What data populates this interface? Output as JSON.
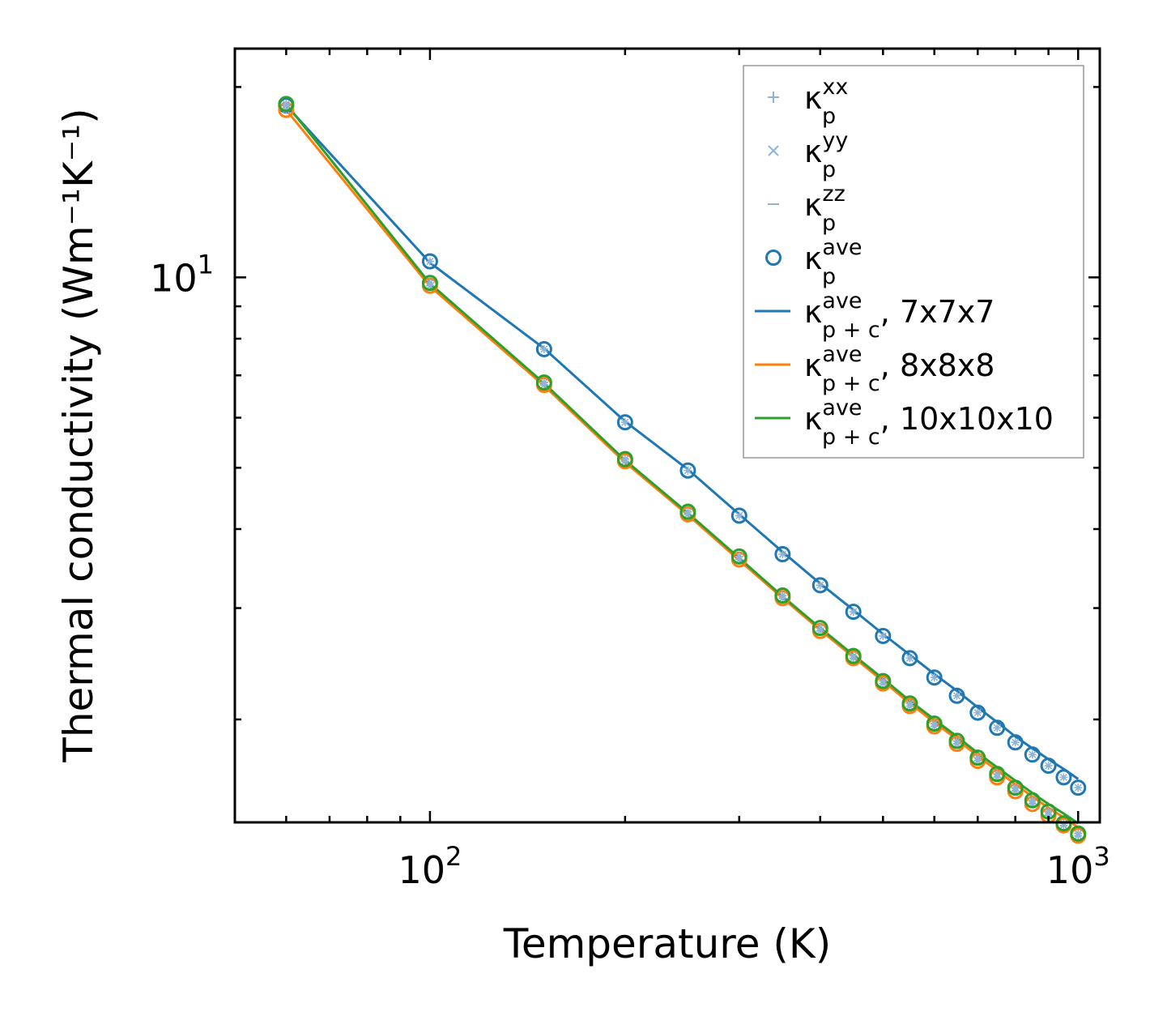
{
  "chart_data": {
    "type": "scatter",
    "xlabel": "Temperature (K)",
    "ylabel": "Thermal conductivity (Wm⁻¹K⁻¹)",
    "xscale": "log",
    "yscale": "log",
    "xlim": [
      50,
      1080
    ],
    "ylim": [
      1.375,
      23.0
    ],
    "x_ticks": [
      {
        "base": "10",
        "exp": "2",
        "value": 100
      },
      {
        "base": "10",
        "exp": "3",
        "value": 1000
      }
    ],
    "y_ticks": [
      {
        "base": "10",
        "exp": "1",
        "value": 10
      }
    ],
    "x": [
      60,
      100,
      150,
      200,
      250,
      300,
      350,
      400,
      450,
      500,
      550,
      600,
      650,
      700,
      750,
      800,
      850,
      900,
      950,
      1000
    ],
    "series": [
      {
        "name": "κ_p^ave 7x7x7 markers",
        "color": "#1f77b4",
        "values": [
          18.7,
          10.6,
          7.7,
          5.9,
          4.95,
          4.2,
          3.65,
          3.26,
          2.96,
          2.71,
          2.5,
          2.33,
          2.18,
          2.05,
          1.94,
          1.84,
          1.76,
          1.69,
          1.62,
          1.56
        ]
      },
      {
        "name": "κ_p^ave 8x8x8 markers",
        "color": "#ff7f0e",
        "values": [
          18.4,
          9.7,
          6.76,
          5.12,
          4.22,
          3.58,
          3.11,
          2.76,
          2.5,
          2.28,
          2.1,
          1.95,
          1.83,
          1.72,
          1.62,
          1.54,
          1.47,
          1.41,
          1.36,
          1.31
        ]
      },
      {
        "name": "κ_p^ave 10x10x10 markers",
        "color": "#2ca02c",
        "values": [
          18.8,
          9.8,
          6.82,
          5.16,
          4.26,
          3.62,
          3.14,
          2.79,
          2.52,
          2.3,
          2.12,
          1.97,
          1.85,
          1.74,
          1.64,
          1.56,
          1.49,
          1.43,
          1.37,
          1.32
        ]
      }
    ],
    "lines": [
      {
        "name": "7x7x7",
        "color": "#1f77b4",
        "values": [
          18.7,
          10.55,
          7.72,
          5.92,
          4.97,
          4.22,
          3.68,
          3.28,
          2.98,
          2.73,
          2.53,
          2.36,
          2.22,
          2.09,
          1.98,
          1.88,
          1.8,
          1.73,
          1.67,
          1.61
        ]
      },
      {
        "name": "8x8x8",
        "color": "#ff7f0e",
        "values": [
          18.4,
          9.68,
          6.74,
          5.1,
          4.21,
          3.57,
          3.11,
          2.77,
          2.51,
          2.3,
          2.12,
          1.98,
          1.86,
          1.75,
          1.66,
          1.58,
          1.51,
          1.45,
          1.4,
          1.35
        ]
      },
      {
        "name": "10x10x10",
        "color": "#2ca02c",
        "values": [
          18.8,
          9.78,
          6.8,
          5.14,
          4.24,
          3.6,
          3.13,
          2.79,
          2.53,
          2.32,
          2.14,
          2.0,
          1.88,
          1.77,
          1.68,
          1.6,
          1.53,
          1.47,
          1.42,
          1.37
        ]
      }
    ],
    "legend": {
      "placement": "top-right",
      "entries": [
        {
          "kind": "plus",
          "color": "#8fb4d6",
          "sym": "κ",
          "sub": "p",
          "sup": "xx",
          "suffix": ""
        },
        {
          "kind": "cross",
          "color": "#8fb4d6",
          "sym": "κ",
          "sub": "p",
          "sup": "yy",
          "suffix": ""
        },
        {
          "kind": "dash",
          "color": "#8fb4d6",
          "sym": "κ",
          "sub": "p",
          "sup": "zz",
          "suffix": ""
        },
        {
          "kind": "circle",
          "color": "#1f77b4",
          "sym": "κ",
          "sub": "p",
          "sup": "ave",
          "suffix": ""
        },
        {
          "kind": "line",
          "color": "#1f77b4",
          "sym": "κ",
          "sub": "p + c",
          "sup": "ave",
          "suffix": ", 7x7x7"
        },
        {
          "kind": "line",
          "color": "#ff7f0e",
          "sym": "κ",
          "sub": "p + c",
          "sup": "ave",
          "suffix": ", 8x8x8"
        },
        {
          "kind": "line",
          "color": "#2ca02c",
          "sym": "κ",
          "sub": "p + c",
          "sup": "ave",
          "suffix": ", 10x10x10"
        }
      ]
    },
    "component_marker_color": "#8fb4d6"
  }
}
